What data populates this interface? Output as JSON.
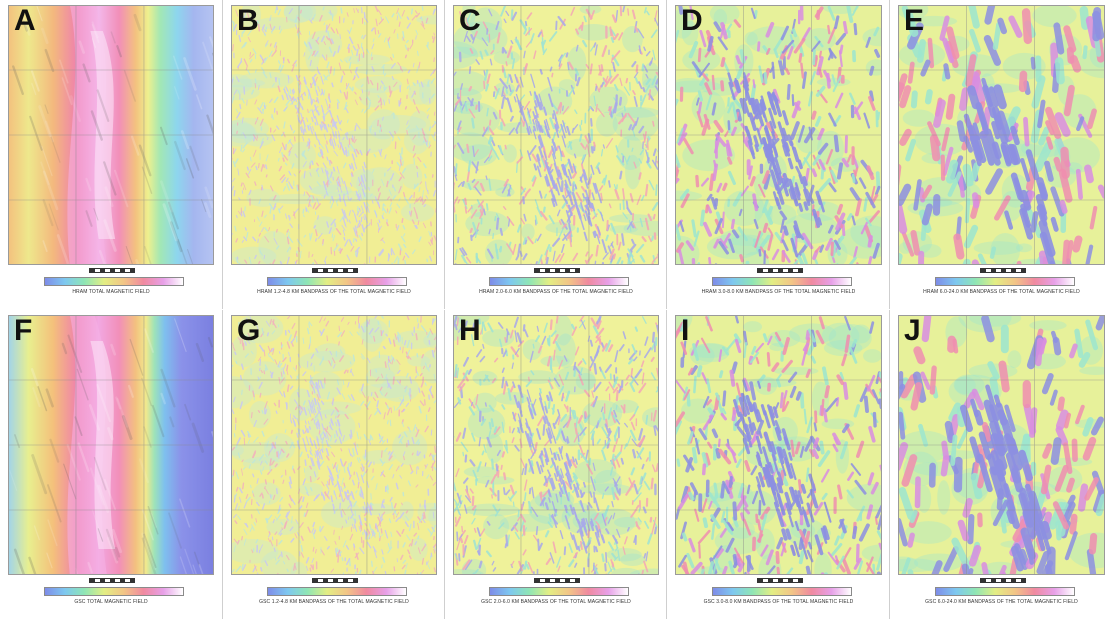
{
  "colors": {
    "ramp": [
      "#7e8ce8",
      "#7ec8f0",
      "#8fe6b5",
      "#e3ee84",
      "#f2c586",
      "#f08aa0",
      "#e7a0e8",
      "#ffffff"
    ],
    "fine_texture": [
      "#f1ee95",
      "#c9c8f2",
      "#f2b3bd",
      "#bfe7d9"
    ],
    "medium_texture": [
      "#eff29a",
      "#a8a9ea",
      "#f4a8b6",
      "#9fe3d4"
    ],
    "coarse_texture": [
      "#e7f19a",
      "#8d90e2",
      "#f08fb0",
      "#d98ee2",
      "#9de6cf"
    ]
  },
  "panels": [
    {
      "letter": "A",
      "type": "total",
      "caption": "HRAM TOTAL MAGNETIC FIELD"
    },
    {
      "letter": "B",
      "type": "fine",
      "caption": "HRAM 1.2-4.8 KM BANDPASS OF THE TOTAL MAGNETIC FIELD"
    },
    {
      "letter": "C",
      "type": "medium",
      "caption": "HRAM 2.0-6.0 KM BANDPASS OF THE TOTAL MAGNETIC FIELD"
    },
    {
      "letter": "D",
      "type": "coarse",
      "caption": "HRAM 3.0-8.0 KM BANDPASS OF THE TOTAL MAGNETIC FIELD"
    },
    {
      "letter": "E",
      "type": "broad",
      "caption": "HRAM 6.0-24.0 KM BANDPASS OF THE TOTAL MAGNETIC FIELD"
    },
    {
      "letter": "F",
      "type": "total",
      "caption": "GSC TOTAL MAGNETIC FIELD"
    },
    {
      "letter": "G",
      "type": "fine",
      "caption": "GSC 1.2-4.8 KM BANDPASS OF THE TOTAL MAGNETIC FIELD"
    },
    {
      "letter": "H",
      "type": "medium",
      "caption": "GSC 2.0-6.0 KM BANDPASS OF THE TOTAL MAGNETIC FIELD"
    },
    {
      "letter": "I",
      "type": "coarse",
      "caption": "GSC 3.0-8.0 KM BANDPASS OF THE TOTAL MAGNETIC FIELD"
    },
    {
      "letter": "J",
      "type": "broad",
      "caption": "GSC 6.0-24.0 KM BANDPASS OF THE TOTAL MAGNETIC FIELD"
    }
  ]
}
